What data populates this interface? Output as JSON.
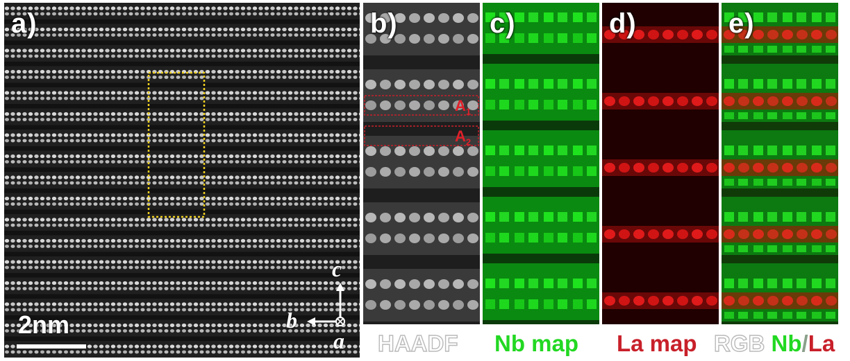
{
  "panel_a": {
    "label": "a)",
    "scale_bar_label": "2nm",
    "axes": {
      "c": "c",
      "b": "b",
      "a": "a"
    }
  },
  "panel_b": {
    "label": "b)",
    "caption": "HAADF",
    "regions": [
      {
        "main": "A",
        "sub": "1"
      },
      {
        "main": "A",
        "sub": "2"
      }
    ]
  },
  "panel_c": {
    "label": "c)",
    "caption": "Nb map"
  },
  "panel_d": {
    "label": "d)",
    "caption": "La map"
  },
  "panel_e": {
    "label": "e)",
    "caption_rgb": "RGB",
    "caption_nb": "Nb",
    "caption_sep": "/",
    "caption_la": "La"
  },
  "colors": {
    "nb": "#22d822",
    "la": "#c8202a",
    "selection_box": "#f0d020"
  }
}
